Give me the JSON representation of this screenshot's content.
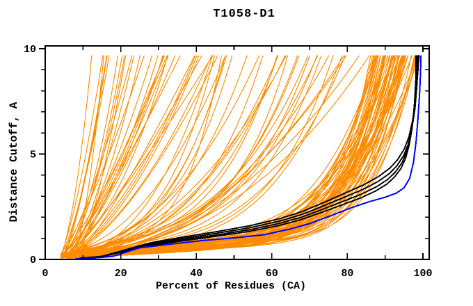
{
  "chart_data": {
    "type": "line",
    "title": "T1058-D1",
    "xlabel": "Percent of Residues (CA)",
    "ylabel": "Distance Cutoff, A",
    "xlim": [
      0,
      100
    ],
    "ylim": [
      0,
      10
    ],
    "grid": false,
    "legend": "none",
    "clip_dmax": 9.68,
    "axes": {
      "x": {
        "label": "Percent of Residues (CA)",
        "min": 0,
        "max": 100,
        "major_ticks": [
          0,
          20,
          40,
          60,
          80,
          100
        ],
        "major_tick_labels": [
          "0",
          "20",
          "40",
          "60",
          "80",
          "100"
        ],
        "minor_step": 10
      },
      "y": {
        "label": "Distance Cutoff, A",
        "min": 0,
        "max": 10,
        "major_ticks": [
          0,
          5,
          10
        ],
        "major_tick_labels": [
          "0",
          "5",
          "10"
        ],
        "minor_step": 1
      }
    },
    "colors": {
      "orange": "#ff8c00",
      "black": "#000000",
      "blue": "#0000ff",
      "frame": "#000000",
      "background": "#ffffff"
    },
    "series_groups": [
      {
        "name": "prediction-ensemble",
        "color": "#ff8c00",
        "count": 125,
        "generated": true,
        "description": "per-model cumulative curves: percent of CA residues under each distance cutoff"
      },
      {
        "name": "highlighted-models",
        "color": "#000000",
        "count": 4
      },
      {
        "name": "best-model",
        "color": "#0000ff",
        "count": 1
      }
    ],
    "orange_curves": {
      "count": 125,
      "seed": 11,
      "p0_range": [
        4,
        13
      ],
      "d0_range": [
        0.05,
        0.3
      ],
      "dmax": 9.68,
      "tiers": [
        {
          "name": "low-quality",
          "weight": 0.28,
          "pf": [
            12,
            46
          ],
          "g": [
            1.1,
            2.4
          ],
          "a": [
            2.0,
            5.0
          ]
        },
        {
          "name": "mid-quality",
          "weight": 0.3,
          "pf": [
            44,
            86
          ],
          "g": [
            2.2,
            4.8
          ],
          "a": [
            1.3,
            2.8
          ]
        },
        {
          "name": "high-quality",
          "weight": 0.42,
          "pf": [
            86,
            99.3
          ],
          "g": [
            5.0,
            10.0
          ],
          "a": [
            0.8,
            1.7
          ]
        }
      ]
    },
    "black_curves": {
      "base_points": [
        [
          9,
          0.05
        ],
        [
          15,
          0.13
        ],
        [
          20,
          0.35
        ],
        [
          28,
          0.7
        ],
        [
          36,
          0.92
        ],
        [
          45,
          1.15
        ],
        [
          54,
          1.4
        ],
        [
          62,
          1.7
        ],
        [
          68,
          2.0
        ],
        [
          74,
          2.4
        ],
        [
          79,
          2.75
        ],
        [
          84,
          3.1
        ],
        [
          88,
          3.45
        ],
        [
          91,
          3.8
        ],
        [
          93,
          4.15
        ],
        [
          94.8,
          4.6
        ],
        [
          96,
          5.1
        ],
        [
          97,
          5.8
        ],
        [
          97.8,
          6.7
        ],
        [
          98.3,
          7.7
        ],
        [
          98.7,
          9.0
        ],
        [
          98.8,
          9.68
        ]
      ],
      "variants": [
        {
          "d_scale": 0.94,
          "p_end": 98.2
        },
        {
          "d_scale": 1.0,
          "p_end": 98.5
        },
        {
          "d_scale": 1.07,
          "p_end": 98.9
        },
        {
          "d_scale": 1.14,
          "p_end": 99.1
        }
      ]
    },
    "blue_curve": {
      "points": [
        [
          8,
          0.03
        ],
        [
          14,
          0.08
        ],
        [
          18,
          0.15
        ],
        [
          25,
          0.55
        ],
        [
          33,
          0.72
        ],
        [
          42,
          0.9
        ],
        [
          50,
          1.02
        ],
        [
          58,
          1.17
        ],
        [
          65,
          1.45
        ],
        [
          70,
          1.7
        ],
        [
          76,
          2.1
        ],
        [
          81,
          2.45
        ],
        [
          86,
          2.75
        ],
        [
          90,
          2.95
        ],
        [
          93,
          3.15
        ],
        [
          95,
          3.4
        ],
        [
          96.5,
          3.85
        ],
        [
          97.5,
          4.6
        ],
        [
          98.2,
          5.6
        ],
        [
          98.7,
          6.7
        ],
        [
          99.1,
          7.8
        ],
        [
          99.35,
          8.8
        ],
        [
          99.5,
          9.68
        ]
      ]
    }
  }
}
